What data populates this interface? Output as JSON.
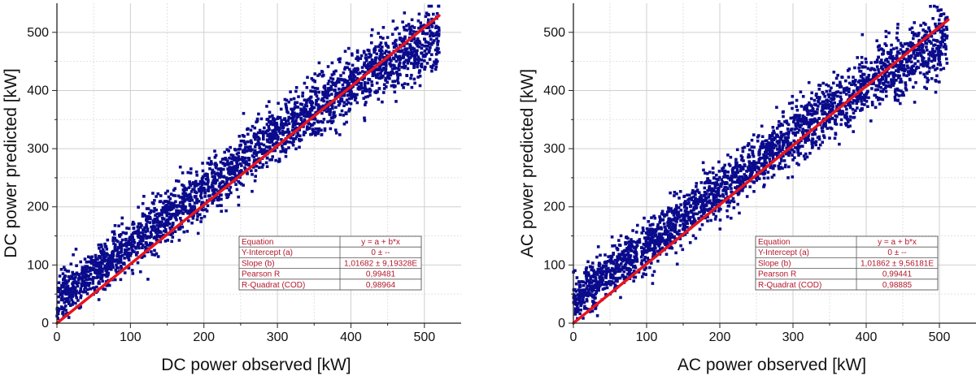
{
  "chart_data": [
    {
      "type": "scatter",
      "xlabel": "DC power observed [kW]",
      "ylabel": "DC power predicted [kW]",
      "xlim": [
        0,
        550
      ],
      "ylim": [
        0,
        550
      ],
      "xticks": [
        "0",
        "100",
        "200",
        "300",
        "400",
        "500"
      ],
      "yticks": [
        "0",
        "100",
        "200",
        "300",
        "400",
        "500"
      ],
      "grid": true,
      "fit_line": {
        "intercept": 0,
        "slope": 1.01682,
        "x_range": [
          0,
          520
        ],
        "color": "#e8141c"
      },
      "point_color": "#0a0a8c",
      "point_cloud": {
        "x_range": [
          0,
          520
        ],
        "trend_center": [
          [
            0,
            40
          ],
          [
            100,
            135
          ],
          [
            200,
            230
          ],
          [
            300,
            325
          ],
          [
            400,
            412
          ],
          [
            520,
            495
          ]
        ],
        "spread": 28,
        "count": 2600
      },
      "stats_table": {
        "rows": [
          [
            "Equation",
            "y = a + b*x"
          ],
          [
            "Y-Intercept (a)",
            "0 ± --"
          ],
          [
            "Slope (b)",
            "1,01682 ± 9,19328E"
          ],
          [
            "Pearson R",
            "0,99481"
          ],
          [
            "R-Quadrat (COD)",
            "0,98964"
          ]
        ]
      }
    },
    {
      "type": "scatter",
      "xlabel": "AC power observed [kW]",
      "ylabel": "AC power predicted [kW]",
      "xlim": [
        0,
        550
      ],
      "ylim": [
        0,
        550
      ],
      "xticks": [
        "0",
        "100",
        "200",
        "300",
        "400",
        "500"
      ],
      "yticks": [
        "0",
        "100",
        "200",
        "300",
        "400",
        "500"
      ],
      "grid": true,
      "fit_line": {
        "intercept": 0,
        "slope": 1.01862,
        "x_range": [
          0,
          512
        ],
        "color": "#e8141c"
      },
      "point_color": "#0a0a8c",
      "point_cloud": {
        "x_range": [
          0,
          512
        ],
        "trend_center": [
          [
            0,
            38
          ],
          [
            100,
            133
          ],
          [
            200,
            228
          ],
          [
            300,
            322
          ],
          [
            400,
            408
          ],
          [
            512,
            490
          ]
        ],
        "spread": 28,
        "count": 2600
      },
      "stats_table": {
        "rows": [
          [
            "Equation",
            "y = a + b*x"
          ],
          [
            "Y-Intercept (a)",
            "0 ± --"
          ],
          [
            "Slope (b)",
            "1,01862 ± 9,56181E"
          ],
          [
            "Pearson R",
            "0,99441"
          ],
          [
            "R-Quadrat (COD)",
            "0,98885"
          ]
        ]
      }
    }
  ]
}
